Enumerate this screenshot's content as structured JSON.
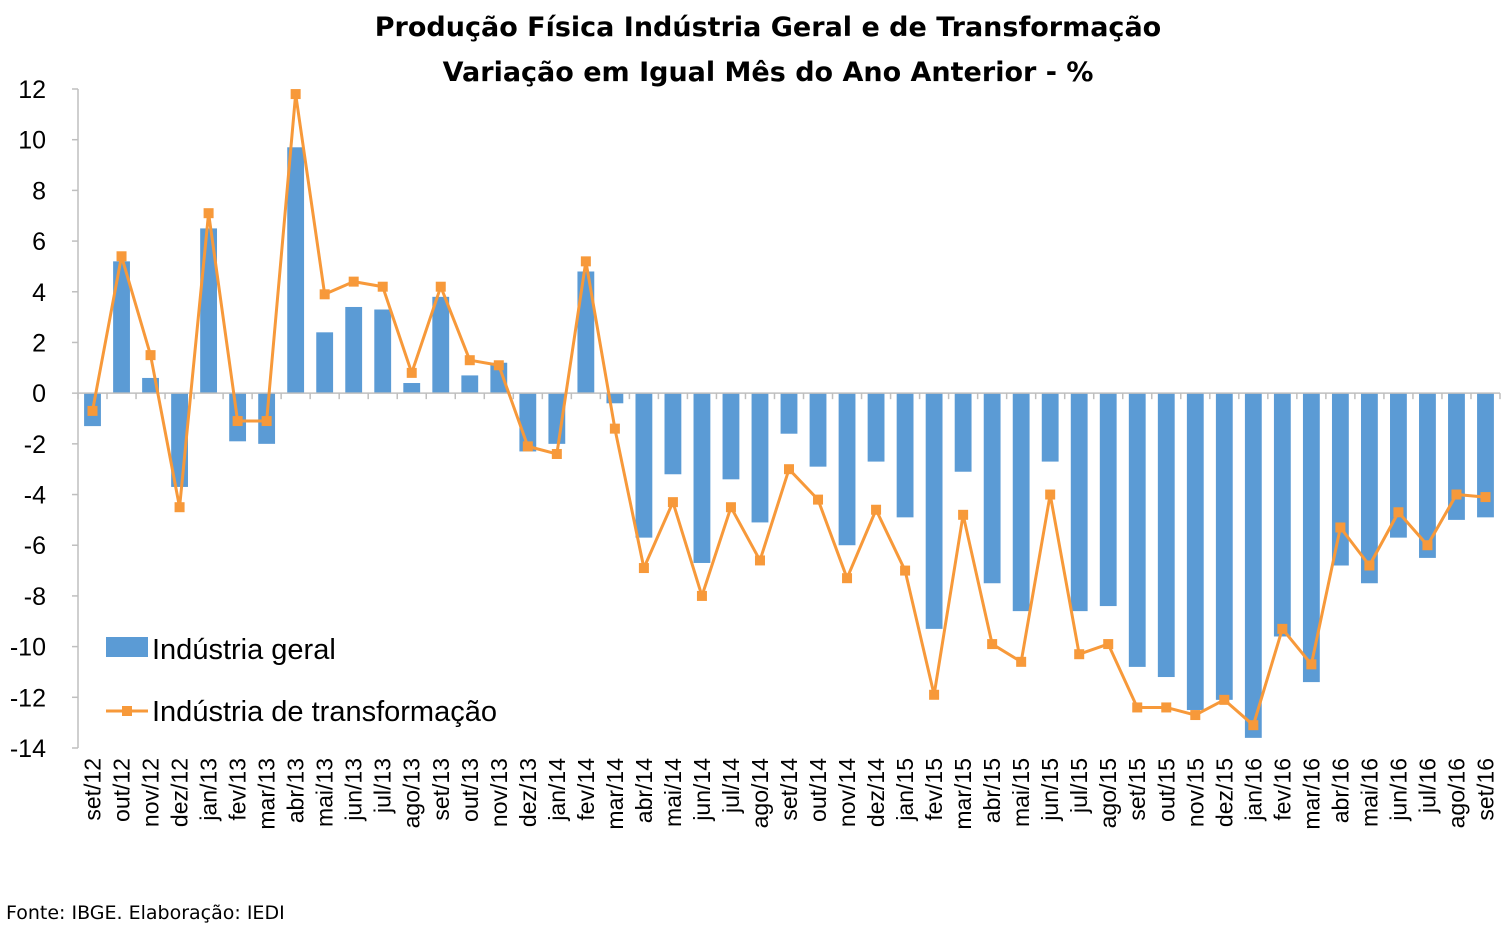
{
  "chart_data": {
    "type": "bar+line",
    "title": "Produção Física Indústria Geral e de Transformação",
    "subtitle": "Variação em Igual Mês do Ano Anterior - %",
    "source": "Fonte: IBGE. Elaboração: IEDI",
    "ylim": [
      -14,
      12
    ],
    "yticks": [
      "12",
      "10",
      "8",
      "6",
      "4",
      "2",
      "0",
      "-2",
      "-4",
      "-6",
      "-8",
      "-10",
      "-12",
      "-14"
    ],
    "categories": [
      "set/12",
      "out/12",
      "nov/12",
      "dez/12",
      "jan/13",
      "fev/13",
      "mar/13",
      "abr/13",
      "mai/13",
      "jun/13",
      "jul/13",
      "ago/13",
      "set/13",
      "out/13",
      "nov/13",
      "dez/13",
      "jan/14",
      "fev/14",
      "mar/14",
      "abr/14",
      "mai/14",
      "jun/14",
      "jul/14",
      "ago/14",
      "set/14",
      "out/14",
      "nov/14",
      "dez/14",
      "jan/15",
      "fev/15",
      "mar/15",
      "abr/15",
      "mai/15",
      "jun/15",
      "jul/15",
      "ago/15",
      "set/15",
      "out/15",
      "nov/15",
      "dez/15",
      "jan/16",
      "fev/16",
      "mar/16",
      "abr/16",
      "mai/16",
      "jun/16",
      "jul/16",
      "ago/16",
      "set/16"
    ],
    "legend_position": "bottom-left",
    "grid": false,
    "series": [
      {
        "name": "Indústria geral",
        "kind": "bar",
        "color": "#5B9BD5",
        "values": [
          -1.3,
          5.2,
          0.6,
          -3.7,
          6.5,
          -1.9,
          -2.0,
          9.7,
          2.4,
          3.4,
          3.3,
          0.4,
          3.8,
          0.7,
          1.2,
          -2.3,
          -2.0,
          4.8,
          -0.4,
          -5.7,
          -3.2,
          -6.7,
          -3.4,
          -5.1,
          -1.6,
          -2.9,
          -6.0,
          -2.7,
          -4.9,
          -9.3,
          -3.1,
          -7.5,
          -8.6,
          -2.7,
          -8.6,
          -8.4,
          -10.8,
          -11.2,
          -12.5,
          -12.1,
          -13.6,
          -9.6,
          -11.4,
          -6.8,
          -7.5,
          -5.7,
          -6.5,
          -5.0,
          -4.9
        ]
      },
      {
        "name": "Indústria de transformação",
        "kind": "line",
        "color": "#F7993A",
        "values": [
          -0.7,
          5.4,
          1.5,
          -4.5,
          7.1,
          -1.1,
          -1.1,
          11.8,
          3.9,
          4.4,
          4.2,
          0.8,
          4.2,
          1.3,
          1.1,
          -2.1,
          -2.4,
          5.2,
          -1.4,
          -6.9,
          -4.3,
          -8.0,
          -4.5,
          -6.6,
          -3.0,
          -4.2,
          -7.3,
          -4.6,
          -7.0,
          -11.9,
          -4.8,
          -9.9,
          -10.6,
          -4.0,
          -10.3,
          -9.9,
          -12.4,
          -12.4,
          -12.7,
          -12.1,
          -13.1,
          -9.3,
          -10.7,
          -5.3,
          -6.8,
          -4.7,
          -6.0,
          -4.0,
          -4.1
        ]
      }
    ]
  }
}
